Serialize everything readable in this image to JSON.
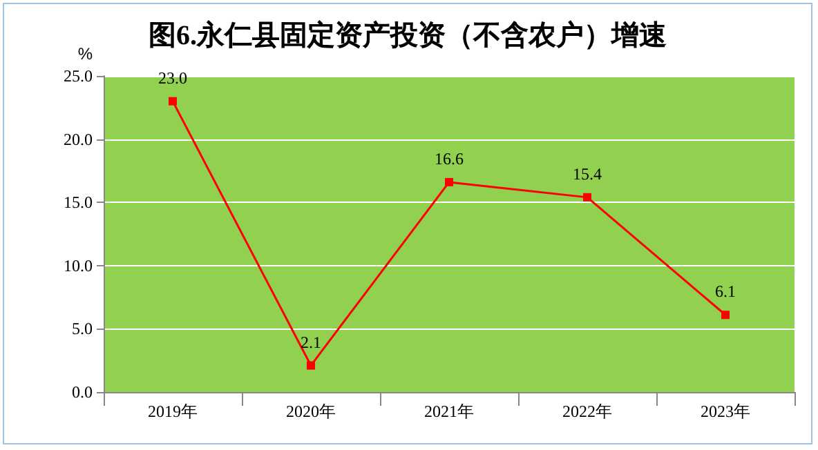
{
  "chart_data": {
    "type": "line",
    "title": "图6.永仁县固定资产投资（不含农户）增速",
    "ylabel": "%",
    "categories": [
      "2019年",
      "2020年",
      "2021年",
      "2022年",
      "2023年"
    ],
    "series": [
      {
        "color": "#ff0000",
        "values": [
          23.0,
          2.1,
          16.6,
          15.4,
          6.1
        ],
        "value_labels": [
          "23.0",
          "2.1",
          "16.6",
          "15.4",
          "6.1"
        ]
      }
    ],
    "ylim": [
      0,
      25
    ],
    "yticks": [
      {
        "value": 0,
        "label": "0.0"
      },
      {
        "value": 5,
        "label": "5.0"
      },
      {
        "value": 10,
        "label": "10.0"
      },
      {
        "value": 15,
        "label": "15.0"
      },
      {
        "value": 20,
        "label": "20.0"
      },
      {
        "value": 25,
        "label": "25.0"
      }
    ],
    "grid": "y",
    "marker": "square",
    "line_style": "solid"
  }
}
